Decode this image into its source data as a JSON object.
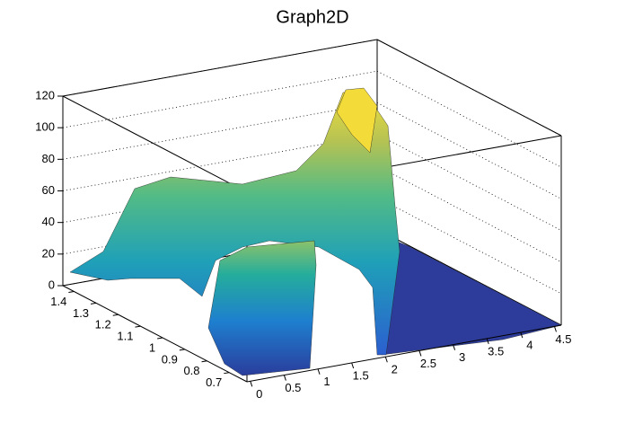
{
  "chart_data": {
    "type": "surface3d",
    "title": "Graph2D",
    "xlim": [
      -0.05,
      4.6
    ],
    "xticks": [
      0,
      0.5,
      1,
      1.5,
      2,
      2.5,
      3,
      3.5,
      4,
      4.5
    ],
    "ylim": [
      0.62,
      1.45
    ],
    "yticks": [
      0.7,
      0.8,
      0.9,
      1,
      1.1,
      1.2,
      1.3,
      1.4
    ],
    "zlim": [
      0,
      120
    ],
    "zticks": [
      0,
      20,
      40,
      60,
      80,
      100,
      120
    ],
    "grid": true
  }
}
